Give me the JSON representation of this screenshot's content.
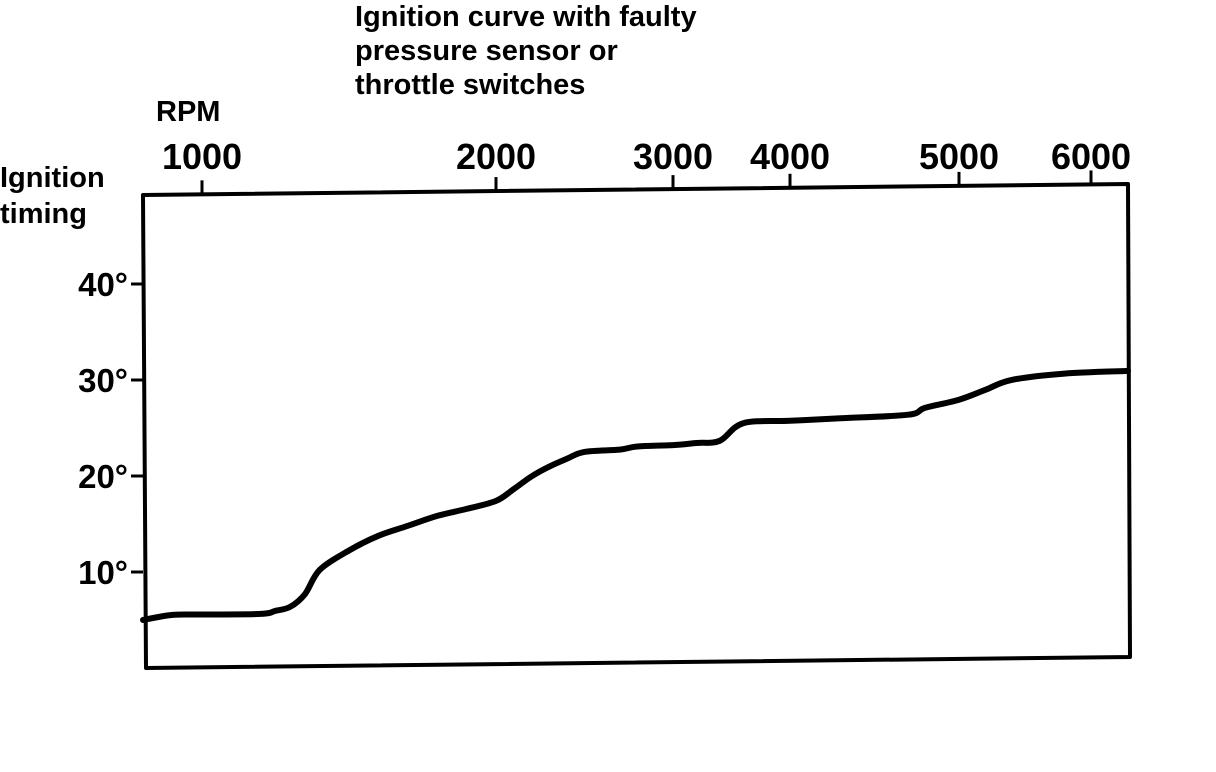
{
  "chart_data": {
    "type": "line",
    "title": "Ignition curve with faulty\npressure sensor or\nthrottle switches",
    "xlabel": "RPM",
    "ylabel": "Ignition\ntiming",
    "x_ticks": [
      {
        "value": 1000,
        "label": "1000"
      },
      {
        "value": 2000,
        "label": "2000"
      },
      {
        "value": 3000,
        "label": "3000"
      },
      {
        "value": 4000,
        "label": "4000"
      },
      {
        "value": 5000,
        "label": "5000"
      },
      {
        "value": 6000,
        "label": "6000"
      }
    ],
    "y_ticks": [
      {
        "value": 10,
        "label": "10°"
      },
      {
        "value": 20,
        "label": "20°"
      },
      {
        "value": 30,
        "label": "30°"
      },
      {
        "value": 40,
        "label": "40°"
      }
    ],
    "x_scale": "nonlinear",
    "ylim": [
      0,
      48
    ],
    "grid": false,
    "legend": "none",
    "line_color": "#000000",
    "series": [
      {
        "x": [
          800,
          900,
          1000,
          1200,
          1250,
          1300,
          1350,
          1400,
          1500,
          1600,
          1700,
          1800,
          1900,
          2000,
          2100,
          2200,
          2300,
          2400,
          2500,
          2700,
          2800,
          3000,
          3200,
          3400,
          3600,
          4000,
          4300,
          4700,
          4800,
          5000,
          5200,
          5400,
          5800,
          6400
        ],
        "y": [
          5,
          5.5,
          5.5,
          5.5,
          5.8,
          6.2,
          7.5,
          10,
          12,
          13.5,
          14.5,
          15.5,
          16.2,
          17,
          18.2,
          19.5,
          20.5,
          21.3,
          22,
          22.2,
          22.5,
          22.6,
          22.8,
          23,
          24.8,
          25,
          25.2,
          25.5,
          26.2,
          27,
          28,
          29,
          29.6,
          29.8
        ]
      }
    ]
  }
}
